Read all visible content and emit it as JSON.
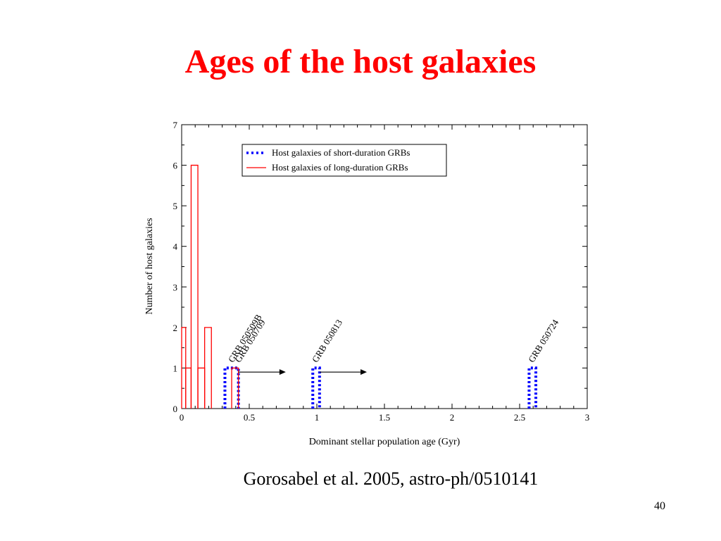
{
  "slide": {
    "title": "Ages of the host galaxies",
    "caption": "Gorosabel et al. 2005, astro-ph/0510141",
    "page_number": "40"
  },
  "chart_data": {
    "type": "histogram",
    "xlabel": "Dominant stellar population age (Gyr)",
    "ylabel": "Number of host galaxies",
    "xlim": [
      0,
      3
    ],
    "ylim": [
      0,
      7
    ],
    "x_ticks": [
      0,
      0.5,
      1,
      1.5,
      2,
      2.5,
      3
    ],
    "x_tick_labels": [
      "0",
      "0.5",
      "1",
      "1.5",
      "2",
      "2.5",
      "3"
    ],
    "y_ticks": [
      0,
      1,
      2,
      3,
      4,
      5,
      6,
      7
    ],
    "y_tick_labels": [
      "0",
      "1",
      "2",
      "3",
      "4",
      "5",
      "6",
      "7"
    ],
    "legend_position": "top-right",
    "series": [
      {
        "name": "Host galaxies of short-duration GRBs",
        "style": "dotted",
        "color": "#0000ff",
        "bins": [
          {
            "x0": 0.32,
            "x1": 0.42,
            "count": 1
          },
          {
            "x0": 0.97,
            "x1": 1.02,
            "count": 1
          },
          {
            "x0": 2.57,
            "x1": 2.62,
            "count": 1
          }
        ]
      },
      {
        "name": "Host galaxies of long-duration GRBs",
        "style": "solid",
        "color": "#ff0000",
        "bins": [
          {
            "x0": 0.0,
            "x1": 0.03,
            "count": 2
          },
          {
            "x0": 0.03,
            "x1": 0.07,
            "count": 1
          },
          {
            "x0": 0.07,
            "x1": 0.12,
            "count": 6
          },
          {
            "x0": 0.12,
            "x1": 0.17,
            "count": 1
          },
          {
            "x0": 0.17,
            "x1": 0.22,
            "count": 2
          },
          {
            "x0": 0.37,
            "x1": 0.42,
            "count": 1
          }
        ]
      }
    ],
    "annotations": [
      {
        "text": "GRB 050509B",
        "x": 0.38,
        "y": 1.05
      },
      {
        "text": "GRB 050709",
        "x": 0.43,
        "y": 1.05
      },
      {
        "text": "GRB 050813",
        "x": 1.0,
        "y": 1.05
      },
      {
        "text": "GRB 050724",
        "x": 2.6,
        "y": 1.05
      }
    ],
    "arrows": [
      {
        "from": 0.42,
        "to": 0.77,
        "y": 0.9
      },
      {
        "from": 1.02,
        "to": 1.37,
        "y": 0.9
      }
    ]
  }
}
